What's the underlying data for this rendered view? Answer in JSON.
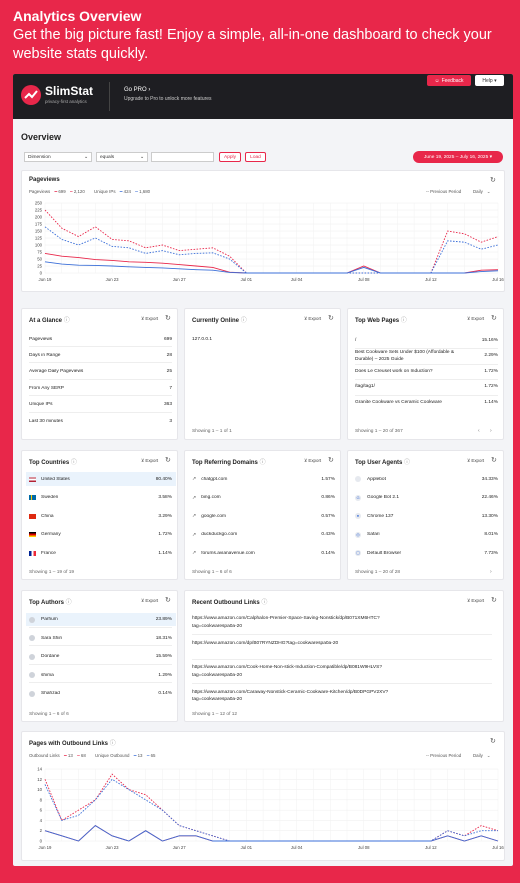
{
  "hero": {
    "title": "Analytics Overview",
    "subtitle": "Get the big picture fast! Enjoy a simple, all-in-one dashboard to check your website stats quickly."
  },
  "topbar": {
    "logo_text": "SlimStat",
    "logo_tagline": "privacy-first analytics",
    "gopro_label": "Go PRO ›",
    "gopro_sub": "Upgrade to Pro to unlock more features",
    "feedback_label": "Feedback",
    "help_label": "Help ▾"
  },
  "overview": {
    "title": "Overview",
    "filter_dimension": "Dimension",
    "filter_operator": "equals",
    "filter_value": "",
    "apply_label": "Apply",
    "load_label": "Load",
    "date_range": "June 19, 2025 – July 16, 2025 ▾"
  },
  "colors": {
    "accent": "#e8274a",
    "series_blue": "#3b6fd8"
  },
  "pageviews_chart": {
    "title": "Pageviews",
    "legend": {
      "pageviews_label": "Pageviews",
      "pageviews_current": "699",
      "pageviews_previous": "2,120",
      "uniqueips_label": "Unique IPs",
      "uniqueips_current": "424",
      "uniqueips_previous": "1,680",
      "previous_period": "-- Previous Period",
      "interval": "Daily"
    }
  },
  "outbound_chart": {
    "title": "Pages with Outbound Links",
    "legend": {
      "outbound_label": "Outbound Links",
      "outbound_current": "13",
      "outbound_previous": "68",
      "unique_label": "Unique Outbound",
      "unique_current": "13",
      "unique_previous": "65",
      "previous_period": "-- Previous Period",
      "interval": "Daily"
    }
  },
  "chart_data": [
    {
      "type": "line",
      "title": "Pageviews",
      "x": [
        "Jun 19",
        "Jun 20",
        "Jun 21",
        "Jun 22",
        "Jun 23",
        "Jun 24",
        "Jun 25",
        "Jun 26",
        "Jun 27",
        "Jun 28",
        "Jun 29",
        "Jun 30",
        "Jul 01",
        "Jul 02",
        "Jul 03",
        "Jul 04",
        "Jul 05",
        "Jul 06",
        "Jul 07",
        "Jul 08",
        "Jul 09",
        "Jul 10",
        "Jul 11",
        "Jul 12",
        "Jul 13",
        "Jul 14",
        "Jul 15",
        "Jul 16"
      ],
      "x_ticks": [
        "Jun 19",
        "Jun 23",
        "Jun 27",
        "Jul 01",
        "Jul 04",
        "Jul 08",
        "Jul 12",
        "Jul 16"
      ],
      "y_ticks": [
        "0",
        "25",
        "50",
        "75",
        "100",
        "125",
        "150",
        "175",
        "200",
        "225",
        "250"
      ],
      "ylim": [
        0,
        250
      ],
      "series": [
        {
          "name": "Pageviews",
          "style": "solid",
          "color": "#e8274a",
          "values": [
            70,
            60,
            55,
            48,
            45,
            40,
            38,
            35,
            30,
            25,
            20,
            3,
            0,
            0,
            0,
            0,
            0,
            0,
            0,
            25,
            0,
            0,
            0,
            0,
            0,
            0,
            10,
            12
          ]
        },
        {
          "name": "Pageviews",
          "style": "dashed",
          "color": "#e8274a",
          "values": [
            225,
            160,
            130,
            165,
            120,
            115,
            90,
            100,
            80,
            85,
            90,
            60,
            0,
            0,
            0,
            0,
            0,
            0,
            0,
            0,
            0,
            0,
            0,
            0,
            150,
            140,
            110,
            130
          ]
        },
        {
          "name": "Unique IPs",
          "style": "solid",
          "color": "#3b6fd8",
          "values": [
            40,
            32,
            28,
            27,
            25,
            22,
            20,
            18,
            15,
            12,
            10,
            2,
            0,
            0,
            0,
            0,
            0,
            0,
            0,
            20,
            0,
            0,
            0,
            0,
            0,
            0,
            5,
            8
          ]
        },
        {
          "name": "Unique IPs",
          "style": "dashed",
          "color": "#3b6fd8",
          "values": [
            165,
            120,
            100,
            125,
            95,
            90,
            70,
            80,
            65,
            70,
            72,
            50,
            0,
            0,
            0,
            0,
            0,
            0,
            0,
            0,
            0,
            0,
            0,
            0,
            115,
            110,
            85,
            100
          ]
        }
      ]
    },
    {
      "type": "line",
      "title": "Pages with Outbound Links",
      "x": [
        "Jun 19",
        "Jun 20",
        "Jun 21",
        "Jun 22",
        "Jun 23",
        "Jun 24",
        "Jun 25",
        "Jun 26",
        "Jun 27",
        "Jun 28",
        "Jun 29",
        "Jun 30",
        "Jul 01",
        "Jul 02",
        "Jul 03",
        "Jul 04",
        "Jul 05",
        "Jul 06",
        "Jul 07",
        "Jul 08",
        "Jul 09",
        "Jul 10",
        "Jul 11",
        "Jul 12",
        "Jul 13",
        "Jul 14",
        "Jul 15",
        "Jul 16"
      ],
      "x_ticks": [
        "Jun 19",
        "Jun 23",
        "Jun 27",
        "Jul 01",
        "Jul 04",
        "Jul 08",
        "Jul 12",
        "Jul 16"
      ],
      "y_ticks": [
        "0",
        "2",
        "4",
        "6",
        "8",
        "10",
        "12",
        "14"
      ],
      "ylim": [
        0,
        14
      ],
      "series": [
        {
          "name": "Outbound Links",
          "style": "solid",
          "color": "#e8274a",
          "values": [
            2,
            1,
            0,
            3,
            1,
            0,
            2,
            0,
            1,
            1,
            0,
            0,
            0,
            0,
            0,
            0,
            0,
            0,
            0,
            0,
            0,
            0,
            0,
            0,
            1,
            0,
            1,
            0
          ]
        },
        {
          "name": "Outbound Links",
          "style": "dashed",
          "color": "#e8274a",
          "values": [
            12,
            4,
            6,
            8,
            13,
            10,
            9,
            6,
            3,
            2,
            1,
            0,
            0,
            0,
            0,
            0,
            0,
            0,
            0,
            0,
            0,
            0,
            0,
            0,
            2,
            1,
            3,
            2
          ]
        },
        {
          "name": "Unique Outbound",
          "style": "solid",
          "color": "#3b6fd8",
          "values": [
            2,
            1,
            0,
            3,
            1,
            0,
            2,
            0,
            1,
            1,
            0,
            0,
            0,
            0,
            0,
            0,
            0,
            0,
            0,
            0,
            0,
            0,
            0,
            0,
            1,
            0,
            1,
            0
          ]
        },
        {
          "name": "Unique Outbound",
          "style": "dashed",
          "color": "#3b6fd8",
          "values": [
            11,
            4,
            5,
            8,
            12,
            10,
            8,
            6,
            3,
            2,
            1,
            0,
            0,
            0,
            0,
            0,
            0,
            0,
            0,
            0,
            0,
            0,
            0,
            0,
            2,
            1,
            2,
            2
          ]
        }
      ]
    }
  ],
  "at_a_glance": {
    "title": "At a Glance",
    "export": "⊻ Export",
    "rows": [
      {
        "label": "Pageviews",
        "value": "699"
      },
      {
        "label": "Days in Range",
        "value": "28"
      },
      {
        "label": "Average Daily Pageviews",
        "value": "25"
      },
      {
        "label": "From Any SERP",
        "value": "7"
      },
      {
        "label": "Unique IPs",
        "value": "363"
      },
      {
        "label": "Last 30 minutes",
        "value": "3"
      }
    ]
  },
  "currently_online": {
    "title": "Currently Online",
    "export": "⊻ Export",
    "rows": [
      {
        "label": "127.0.0.1",
        "value": ""
      }
    ],
    "showing": "Showing 1 – 1 of 1"
  },
  "top_web_pages": {
    "title": "Top Web Pages",
    "export": "⊻ Export",
    "rows": [
      {
        "label": "/",
        "value": "15.16%"
      },
      {
        "label": "Best Cookware Sets Under $100 (Affordable & Durable) – 2025 Guide",
        "value": "2.29%"
      },
      {
        "label": "Does Le Creuset work on Induction?",
        "value": "1.72%"
      },
      {
        "label": "/tag/tag1/",
        "value": "1.72%"
      },
      {
        "label": "Granite Cookware vs Ceramic Cookware",
        "value": "1.14%"
      }
    ],
    "showing": "Showing 1 – 20 of 367"
  },
  "top_countries": {
    "title": "Top Countries",
    "export": "⊻ Export",
    "rows": [
      {
        "label": "United States",
        "value": "80.40%"
      },
      {
        "label": "Sweden",
        "value": "3.58%"
      },
      {
        "label": "China",
        "value": "3.29%"
      },
      {
        "label": "Germany",
        "value": "1.72%"
      },
      {
        "label": "France",
        "value": "1.14%"
      }
    ],
    "showing": "Showing 1 – 19 of 19"
  },
  "top_referring_domains": {
    "title": "Top Referring Domains",
    "export": "⊻ Export",
    "rows": [
      {
        "label": "chatgpt.com",
        "value": "1.57%"
      },
      {
        "label": "bing.com",
        "value": "0.86%"
      },
      {
        "label": "google.com",
        "value": "0.57%"
      },
      {
        "label": "duckduckgo.com",
        "value": "0.43%"
      },
      {
        "label": "forums.avianavenue.com",
        "value": "0.14%"
      }
    ],
    "showing": "Showing 1 – 6 of 6"
  },
  "top_user_agents": {
    "title": "Top User Agents",
    "export": "⊻ Export",
    "rows": [
      {
        "label": "Applebot",
        "value": "34.33%"
      },
      {
        "label": "Google Bot 2.1",
        "value": "22.46%"
      },
      {
        "label": "Chrome 137",
        "value": "13.30%"
      },
      {
        "label": "Safari",
        "value": "8.01%"
      },
      {
        "label": "Default Browser",
        "value": "7.73%"
      }
    ],
    "showing": "Showing 1 – 20 of 28"
  },
  "top_authors": {
    "title": "Top Authors",
    "export": "⊻ Export",
    "rows": [
      {
        "label": "Parhum",
        "value": "23.89%"
      },
      {
        "label": "Sara Shiri",
        "value": "18.31%"
      },
      {
        "label": "Dordane",
        "value": "15.59%"
      },
      {
        "label": "shima",
        "value": "1.29%"
      },
      {
        "label": "Shahzad",
        "value": "0.14%"
      }
    ],
    "showing": "Showing 1 – 6 of 6"
  },
  "recent_outbound_links": {
    "title": "Recent Outbound Links",
    "export": "⊻ Export",
    "rows": [
      {
        "line1": "https://www.amazon.com/Calphalon-Premier-Space-Saving-Nonstick/dp/B071XM6HTC?",
        "line2": "tag=cookwarespa0a-20"
      },
      {
        "line1": "https://www.amazon.com/dp/B07RYNZDHG?tag=cookwarespa0a-20",
        "line2": ""
      },
      {
        "line1": "https://www.amazon.com/Cook-Home-Non-stick-Induction-Compatible/dp/B081W9HLVS?",
        "line2": "tag=cookwarespa0a-20"
      },
      {
        "line1": "https://www.amazon.com/Caraway-Nonstick-Ceramic-Cookware-Kitchen/dp/B0DPGPV2XV?",
        "line2": "tag=cookwarespa0a-20"
      }
    ],
    "showing": "Showing 1 – 12 of 12"
  }
}
